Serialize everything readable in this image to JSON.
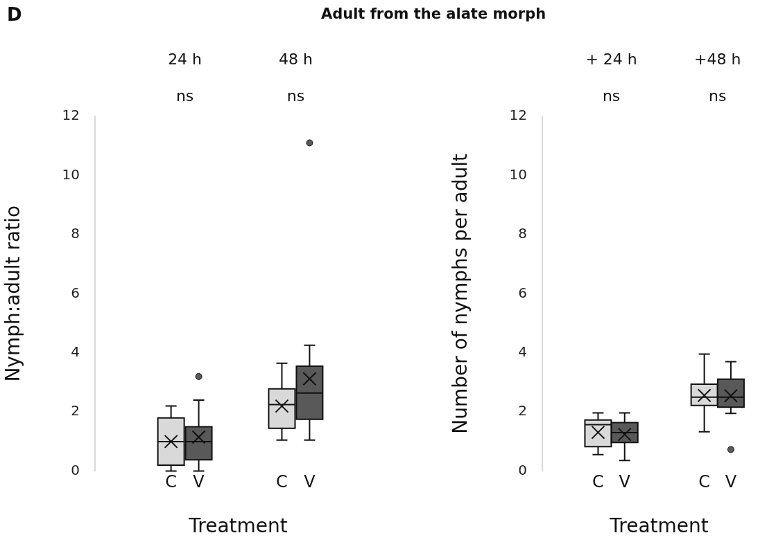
{
  "chart_data": [
    {
      "type": "box",
      "title": "Adult from the alate morph",
      "annotations": [
        "D",
        "24 h",
        "ns",
        "48 h",
        "ns"
      ],
      "xlabel": "Treatment",
      "ylabel": "Nymph:adult ratio",
      "categories": [
        "C",
        "V",
        "C",
        "V"
      ],
      "ylim": [
        0,
        12
      ],
      "yticks": [
        0,
        2,
        4,
        6,
        8,
        10,
        12
      ],
      "grid": false,
      "legend": false,
      "series": [
        {
          "colors": [
            "#d9d9d9",
            "#595959",
            "#d9d9d9",
            "#595959"
          ],
          "boxes": [
            {
              "low": 0,
              "q1": 0.2,
              "median": 1.0,
              "q3": 1.8,
              "high": 2.2,
              "mean": 1.0
            },
            {
              "low": 0,
              "q1": 0.38,
              "median": 1.0,
              "q3": 1.5,
              "high": 2.4,
              "mean": 1.15,
              "outliers": [
                3.2
              ]
            },
            {
              "low": 1.05,
              "q1": 1.45,
              "median": 2.25,
              "q3": 2.78,
              "high": 3.65,
              "mean": 2.2
            },
            {
              "low": 1.05,
              "q1": 1.75,
              "median": 2.64,
              "q3": 3.55,
              "high": 4.26,
              "mean": 3.12,
              "outliers": [
                11.1
              ]
            }
          ]
        }
      ]
    },
    {
      "type": "box",
      "annotations": [
        "+ 24 h",
        "ns",
        "+48 h",
        "ns"
      ],
      "xlabel": "Treatment",
      "ylabel": "Number of nymphs per adult",
      "categories": [
        "C",
        "V",
        "C",
        "V"
      ],
      "ylim": [
        0,
        12
      ],
      "yticks": [
        0,
        2,
        4,
        6,
        8,
        10,
        12
      ],
      "grid": false,
      "legend": false,
      "series": [
        {
          "colors": [
            "#d9d9d9",
            "#595959",
            "#d9d9d9",
            "#595959"
          ],
          "boxes": [
            {
              "low": 0.56,
              "q1": 0.83,
              "median": 1.57,
              "q3": 1.73,
              "high": 1.97,
              "mean": 1.31
            },
            {
              "low": 0.36,
              "q1": 0.97,
              "median": 1.3,
              "q3": 1.64,
              "high": 1.97,
              "mean": 1.24
            },
            {
              "low": 1.33,
              "q1": 2.22,
              "median": 2.5,
              "q3": 2.94,
              "high": 3.96,
              "mean": 2.56
            },
            {
              "low": 1.95,
              "q1": 2.16,
              "median": 2.5,
              "q3": 3.11,
              "high": 3.7,
              "mean": 2.55,
              "outliers": [
                0.73
              ]
            }
          ]
        }
      ]
    }
  ]
}
